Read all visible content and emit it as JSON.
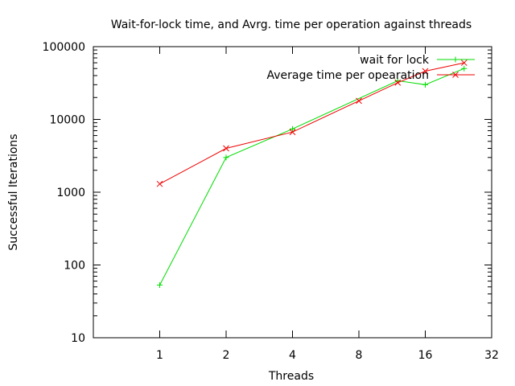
{
  "chart_data": {
    "type": "line",
    "title": "Wait-for-lock time, and Avrg. time per operation against threads",
    "xlabel": "Threads",
    "ylabel": "Successful Iterations",
    "x_scale": "log2",
    "y_scale": "log10",
    "xlim": [
      0.5,
      32
    ],
    "ylim": [
      10,
      100000
    ],
    "x_ticks": [
      1,
      2,
      4,
      8,
      16,
      32
    ],
    "y_ticks": [
      10,
      100,
      1000,
      10000,
      100000
    ],
    "x_tick_labels": [
      "1",
      "2",
      "4",
      "8",
      "16",
      "32"
    ],
    "y_tick_labels": [
      "10",
      "100",
      "1000",
      "10000",
      "100000"
    ],
    "grid": false,
    "legend_position": "top-right",
    "series": [
      {
        "name": "wait for lock",
        "color": "#00dd00",
        "marker": "plus",
        "x": [
          1,
          2,
          4,
          12,
          16,
          24
        ],
        "y": [
          53,
          3000,
          7400,
          34000,
          30000,
          50000
        ]
      },
      {
        "name": "Average time per opearation",
        "color": "#ee0000",
        "marker": "cross",
        "x": [
          1,
          2,
          4,
          8,
          12,
          16,
          24
        ],
        "y": [
          1300,
          4000,
          6700,
          18000,
          32000,
          46000,
          60000
        ]
      }
    ]
  }
}
